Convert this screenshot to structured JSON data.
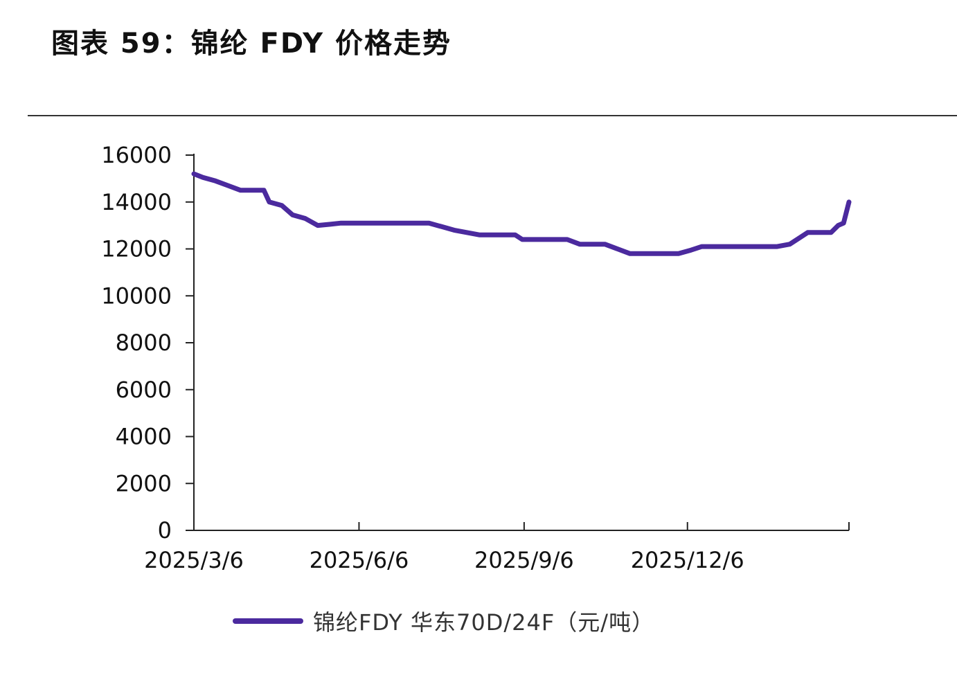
{
  "title": "图表 59：锦纶 FDY 价格走势",
  "colors": {
    "series_line": "#4B2A9E",
    "axis": "#222222",
    "rule": "#333333"
  },
  "chart_data": {
    "type": "line",
    "title": "图表 59：锦纶 FDY 价格走势",
    "xlabel": "",
    "ylabel": "",
    "ylim": [
      0,
      16000
    ],
    "yticks": [
      "0",
      "2000",
      "4000",
      "6000",
      "8000",
      "10000",
      "12000",
      "14000",
      "16000"
    ],
    "xlim": [
      "2025-03-06",
      "2026-03-06"
    ],
    "xticks": [
      {
        "date": "2025-03-06",
        "label": "2025/3/6"
      },
      {
        "date": "2025-06-06",
        "label": "2025/6/6"
      },
      {
        "date": "2025-09-06",
        "label": "2025/9/6"
      },
      {
        "date": "2025-12-06",
        "label": "2025/12/6"
      }
    ],
    "grid": false,
    "legend": "bottom",
    "series": [
      {
        "name": "锦纶FDY 华东70D/24F（元/吨）",
        "points": [
          [
            "2025-03-06",
            15200
          ],
          [
            "2025-03-11",
            15050
          ],
          [
            "2025-03-18",
            14900
          ],
          [
            "2025-03-25",
            14700
          ],
          [
            "2025-04-01",
            14500
          ],
          [
            "2025-04-14",
            14500
          ],
          [
            "2025-04-17",
            14000
          ],
          [
            "2025-04-24",
            13850
          ],
          [
            "2025-04-30",
            13450
          ],
          [
            "2025-05-07",
            13300
          ],
          [
            "2025-05-14",
            13000
          ],
          [
            "2025-05-21",
            13050
          ],
          [
            "2025-05-27",
            13100
          ],
          [
            "2025-07-15",
            13100
          ],
          [
            "2025-07-22",
            12950
          ],
          [
            "2025-07-29",
            12800
          ],
          [
            "2025-08-05",
            12700
          ],
          [
            "2025-08-12",
            12600
          ],
          [
            "2025-09-01",
            12600
          ],
          [
            "2025-09-05",
            12400
          ],
          [
            "2025-09-30",
            12400
          ],
          [
            "2025-10-07",
            12200
          ],
          [
            "2025-10-21",
            12200
          ],
          [
            "2025-10-28",
            12000
          ],
          [
            "2025-11-04",
            11800
          ],
          [
            "2025-12-01",
            11800
          ],
          [
            "2025-12-08",
            11950
          ],
          [
            "2025-12-14",
            12100
          ],
          [
            "2026-01-25",
            12100
          ],
          [
            "2026-02-01",
            12200
          ],
          [
            "2026-02-06",
            12450
          ],
          [
            "2026-02-11",
            12700
          ],
          [
            "2026-02-24",
            12700
          ],
          [
            "2026-02-28",
            13000
          ],
          [
            "2026-03-03",
            13100
          ],
          [
            "2026-03-06",
            14000
          ]
        ]
      }
    ]
  }
}
